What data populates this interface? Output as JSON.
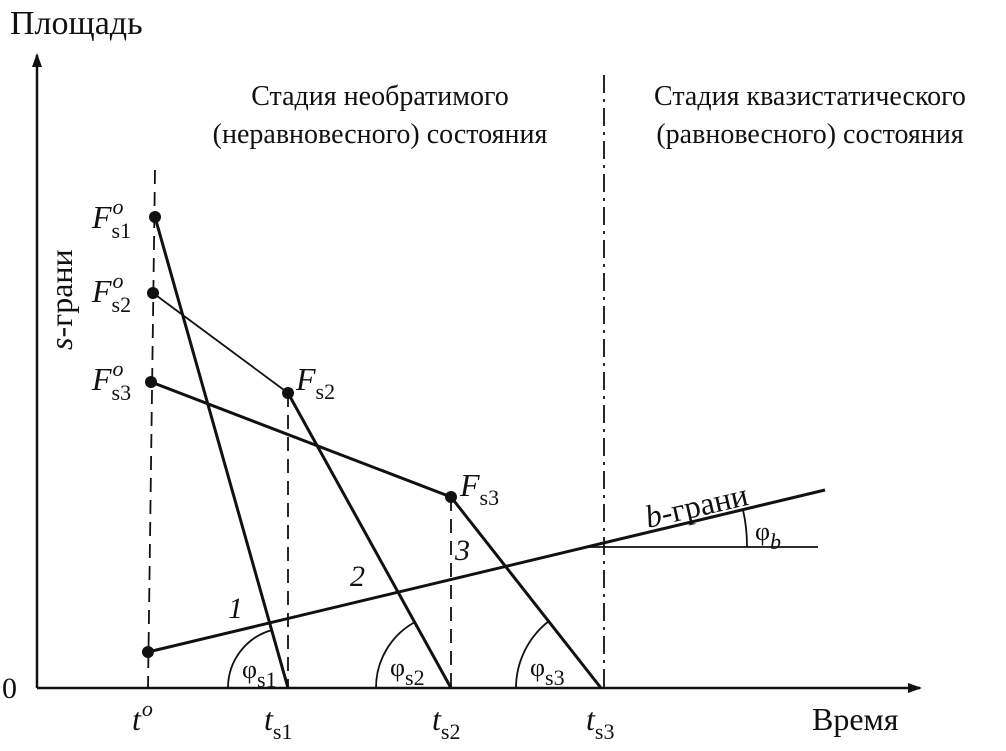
{
  "axes": {
    "y_label": "Площадь",
    "x_label": "Время",
    "origin": "0",
    "s_faces": {
      "italic": "s",
      "text": "-грани"
    },
    "b_faces": {
      "italic": "b",
      "text": "-грани"
    }
  },
  "stages": [
    {
      "line1": "Стадия необратимого",
      "line2": "(неравновесного) состояния"
    },
    {
      "line1": "Стадия квазистатического",
      "line2": "(равновесного) состояния"
    }
  ],
  "points": [
    {
      "main": "F",
      "sup": "o",
      "sub": "s1"
    },
    {
      "main": "F",
      "sup": "o",
      "sub": "s2"
    },
    {
      "main": "F",
      "sup": "o",
      "sub": "s3"
    },
    {
      "main": "F",
      "sub": "s2"
    },
    {
      "main": "F",
      "sub": "s3"
    }
  ],
  "line_numbers": [
    "1",
    "2",
    "3"
  ],
  "angles": [
    {
      "main": "φ",
      "sub": "s1"
    },
    {
      "main": "φ",
      "sub": "s2"
    },
    {
      "main": "φ",
      "sub": "s3"
    },
    {
      "main": "φ",
      "sub": "b"
    }
  ],
  "times": [
    {
      "main": "t",
      "sup": "o"
    },
    {
      "main": "t",
      "sub": "s1"
    },
    {
      "main": "t",
      "sub": "s2"
    },
    {
      "main": "t",
      "sub": "s3"
    }
  ]
}
